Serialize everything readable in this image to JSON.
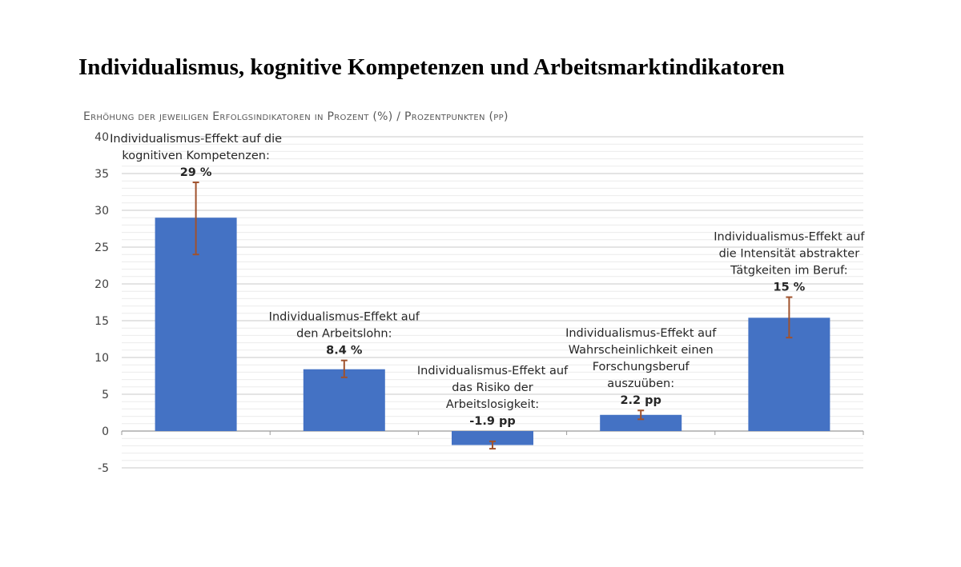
{
  "title": "Individualismus, kognitive Kompetenzen und Arbeitsmarktindikatoren",
  "chart_data": {
    "type": "bar",
    "ylabel": "Erhöhung der jeweiligen Erfolgsindikatoren in Prozent (%) / Prozentpunkten (pp)",
    "ylim": [
      -5,
      40
    ],
    "yticks": [
      40,
      35,
      30,
      25,
      20,
      15,
      10,
      5,
      0,
      -5
    ],
    "grid": true,
    "colors": {
      "bar": "#4472C4",
      "error_bar": "#A0522D"
    },
    "bars": [
      {
        "value": 29,
        "err_low": 24,
        "err_high": 33.8,
        "label_lines": [
          "Individualismus-Effekt auf die",
          "kognitiven Kompetenzen:"
        ],
        "value_label": "29 %"
      },
      {
        "value": 8.4,
        "err_low": 7.3,
        "err_high": 9.6,
        "label_lines": [
          "Individualismus-Effekt auf",
          "den Arbeitslohn:"
        ],
        "value_label": "8.4 %"
      },
      {
        "value": -1.9,
        "err_low": -2.4,
        "err_high": -1.4,
        "label_lines": [
          "Individualismus-Effekt auf",
          "das Risiko der",
          "Arbeitslosigkeit:"
        ],
        "value_label": "-1.9 pp"
      },
      {
        "value": 2.2,
        "err_low": 1.6,
        "err_high": 2.8,
        "label_lines": [
          "Individualismus-Effekt auf",
          "Wahrscheinlichkeit einen",
          "Forschungsberuf",
          "auszuüben:"
        ],
        "value_label": "2.2 pp"
      },
      {
        "value": 15.4,
        "err_low": 12.7,
        "err_high": 18.2,
        "label_lines": [
          "Individualismus-Effekt auf",
          "die Intensität abstrakter",
          "Tätgkeiten im Beruf:"
        ],
        "value_label": "15 %"
      }
    ]
  }
}
